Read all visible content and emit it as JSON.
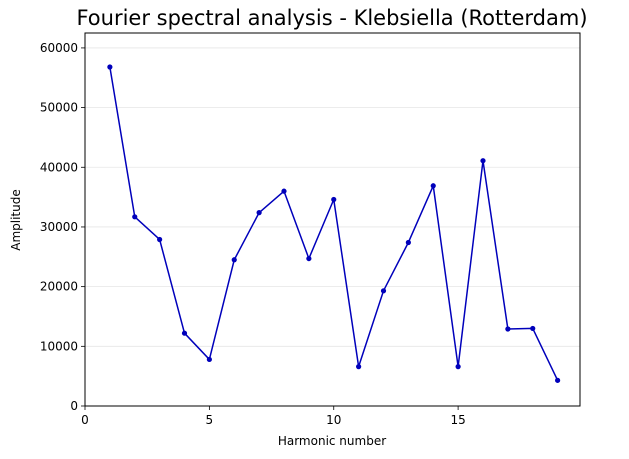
{
  "chart_data": {
    "type": "line",
    "title": "Fourier spectral analysis - Klebsiella (Rotterdam)",
    "xlabel": "Harmonic number",
    "ylabel": "Amplitude",
    "xlim": [
      0,
      19.9
    ],
    "ylim": [
      0,
      62500
    ],
    "xticks": [
      0,
      5,
      10,
      15
    ],
    "yticks": [
      0,
      10000,
      20000,
      30000,
      40000,
      50000,
      60000
    ],
    "grid": "horizontal",
    "legend": "none",
    "series": [
      {
        "color": "#0000bb",
        "marker": "circle",
        "x": [
          1,
          2,
          3,
          4,
          5,
          6,
          7,
          8,
          9,
          10,
          11,
          12,
          13,
          14,
          15,
          16,
          17,
          18,
          19
        ],
        "y": [
          56800,
          31700,
          27900,
          12200,
          7800,
          24500,
          32400,
          36000,
          24700,
          34600,
          6600,
          19300,
          27400,
          36900,
          6600,
          41100,
          12900,
          13000,
          4300
        ]
      }
    ]
  }
}
